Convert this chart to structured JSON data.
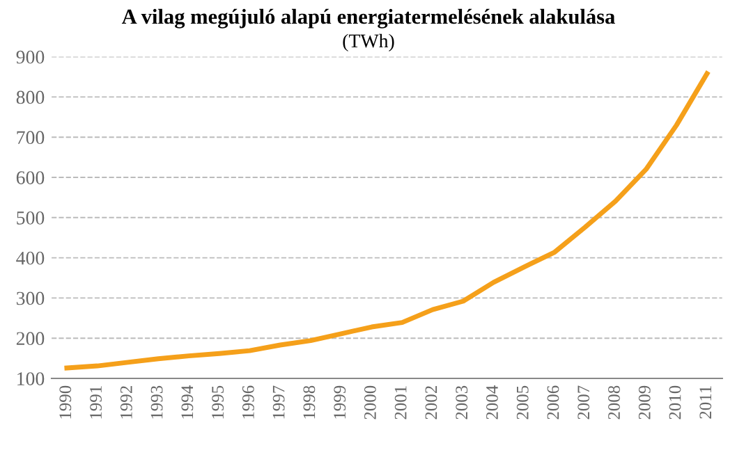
{
  "chart_data": {
    "type": "line",
    "title": "A vilag megújuló alapú energiatermelésének alakulása",
    "subtitle": "(TWh)",
    "categories": [
      "1990",
      "1991",
      "1992",
      "1993",
      "1994",
      "1995",
      "1996",
      "1997",
      "1998",
      "1999",
      "2000",
      "2001",
      "2002",
      "2003",
      "2004",
      "2005",
      "2006",
      "2007",
      "2008",
      "2009",
      "2010",
      "2011"
    ],
    "series": [
      {
        "color": "#f5a01a",
        "values": [
          126,
          131,
          140,
          149,
          156,
          162,
          169,
          183,
          194,
          211,
          228,
          239,
          271,
          292,
          339,
          377,
          414,
          476,
          541,
          620,
          730,
          858
        ]
      }
    ],
    "ylim": [
      100,
      900
    ],
    "yticks": [
      100,
      200,
      300,
      400,
      500,
      600,
      700,
      800,
      900
    ],
    "grid": "y",
    "marker": "none",
    "line_style": "solid"
  }
}
